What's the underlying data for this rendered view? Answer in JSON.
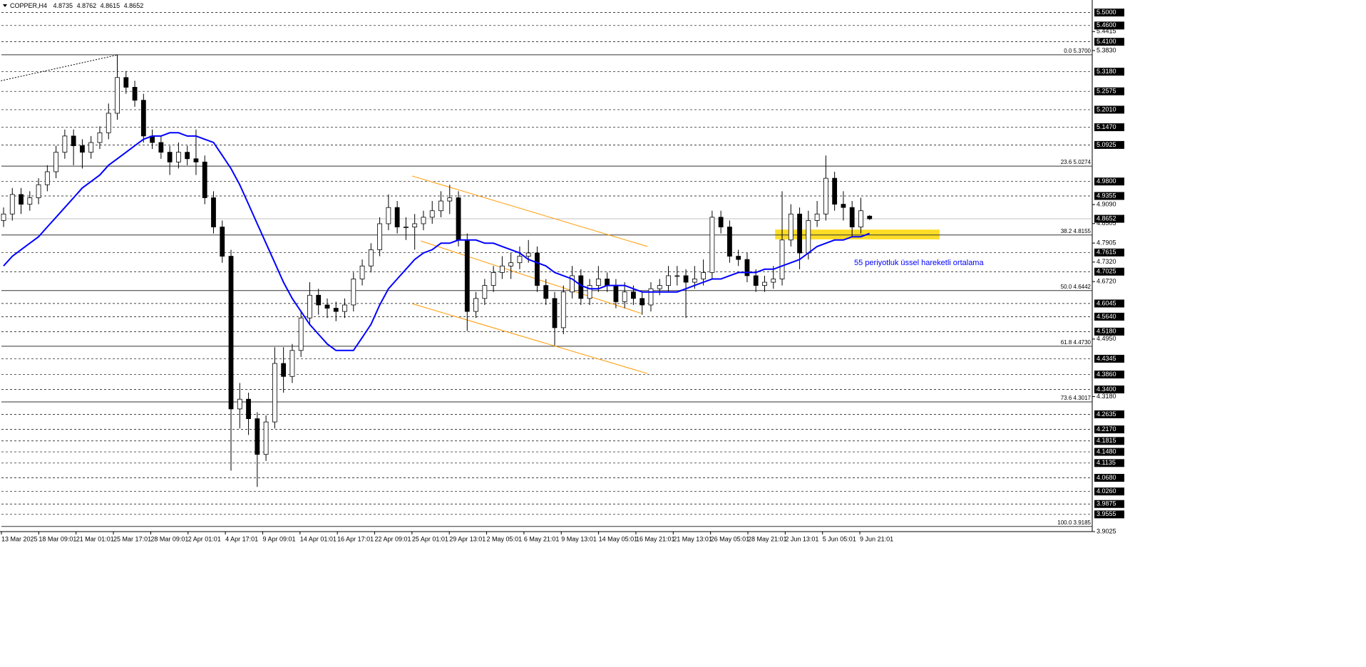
{
  "chart_data": {
    "type": "candlestick",
    "title": "COPPER,H4",
    "x_labels": [
      "13 Mar 2025",
      "18 Mar 09:01",
      "21 Mar 01:01",
      "25 Mar 17:01",
      "28 Mar 09:01",
      "2 Apr 01:01",
      "4 Apr 17:01",
      "9 Apr 09:01",
      "14 Apr 01:01",
      "16 Apr 17:01",
      "22 Apr 09:01",
      "25 Apr 01:01",
      "29 Apr 13:01",
      "2 May 05:01",
      "6 May 21:01",
      "9 May 13:01",
      "14 May 05:01",
      "16 May 21:01",
      "21 May 13:01",
      "26 May 05:01",
      "28 May 21:01",
      "2 Jun 13:01",
      "5 Jun 05:01",
      "9 Jun 21:01"
    ],
    "candles": [
      [
        4.86,
        4.9,
        4.84,
        4.88
      ],
      [
        4.88,
        4.96,
        4.86,
        4.94
      ],
      [
        4.94,
        4.96,
        4.88,
        4.91
      ],
      [
        4.91,
        4.95,
        4.89,
        4.93
      ],
      [
        4.93,
        4.99,
        4.91,
        4.97
      ],
      [
        4.97,
        5.03,
        4.95,
        5.01
      ],
      [
        5.01,
        5.09,
        4.99,
        5.07
      ],
      [
        5.07,
        5.14,
        5.05,
        5.12
      ],
      [
        5.12,
        5.14,
        5.03,
        5.09
      ],
      [
        5.09,
        5.11,
        5.02,
        5.07
      ],
      [
        5.07,
        5.12,
        5.05,
        5.1
      ],
      [
        5.1,
        5.15,
        5.08,
        5.13
      ],
      [
        5.13,
        5.22,
        5.11,
        5.19
      ],
      [
        5.19,
        5.37,
        5.17,
        5.3
      ],
      [
        5.3,
        5.32,
        5.25,
        5.27
      ],
      [
        5.27,
        5.29,
        5.21,
        5.23
      ],
      [
        5.23,
        5.25,
        5.1,
        5.12
      ],
      [
        5.12,
        5.14,
        5.08,
        5.1
      ],
      [
        5.1,
        5.12,
        5.05,
        5.07
      ],
      [
        5.07,
        5.09,
        5.0,
        5.04
      ],
      [
        5.04,
        5.1,
        5.02,
        5.07
      ],
      [
        5.07,
        5.09,
        5.03,
        5.05
      ],
      [
        5.05,
        5.14,
        5.0,
        5.04
      ],
      [
        5.04,
        5.06,
        4.91,
        4.93
      ],
      [
        4.93,
        4.95,
        4.82,
        4.84
      ],
      [
        4.84,
        4.86,
        4.73,
        4.75
      ],
      [
        4.75,
        4.77,
        4.09,
        4.28
      ],
      [
        4.28,
        4.36,
        4.22,
        4.31
      ],
      [
        4.31,
        4.33,
        4.2,
        4.25
      ],
      [
        4.25,
        4.27,
        4.04,
        4.14
      ],
      [
        4.14,
        4.26,
        4.12,
        4.24
      ],
      [
        4.24,
        4.47,
        4.22,
        4.42
      ],
      [
        4.42,
        4.47,
        4.33,
        4.38
      ],
      [
        4.38,
        4.48,
        4.36,
        4.46
      ],
      [
        4.46,
        4.58,
        4.44,
        4.56
      ],
      [
        4.56,
        4.67,
        4.54,
        4.63
      ],
      [
        4.63,
        4.65,
        4.57,
        4.6
      ],
      [
        4.6,
        4.62,
        4.56,
        4.59
      ],
      [
        4.59,
        4.61,
        4.55,
        4.58
      ],
      [
        4.58,
        4.62,
        4.56,
        4.6
      ],
      [
        4.6,
        4.7,
        4.58,
        4.68
      ],
      [
        4.68,
        4.74,
        4.66,
        4.72
      ],
      [
        4.72,
        4.79,
        4.7,
        4.77
      ],
      [
        4.77,
        4.87,
        4.75,
        4.85
      ],
      [
        4.85,
        4.94,
        4.83,
        4.9
      ],
      [
        4.9,
        4.92,
        4.82,
        4.84
      ],
      [
        4.84,
        4.87,
        4.8,
        4.84
      ],
      [
        4.84,
        4.88,
        4.77,
        4.85
      ],
      [
        4.85,
        4.89,
        4.83,
        4.87
      ],
      [
        4.87,
        4.92,
        4.85,
        4.89
      ],
      [
        4.89,
        4.95,
        4.87,
        4.92
      ],
      [
        4.92,
        4.97,
        4.88,
        4.93
      ],
      [
        4.93,
        4.95,
        4.78,
        4.8
      ],
      [
        4.8,
        4.82,
        4.52,
        4.58
      ],
      [
        4.58,
        4.64,
        4.56,
        4.62
      ],
      [
        4.62,
        4.68,
        4.6,
        4.66
      ],
      [
        4.66,
        4.72,
        4.64,
        4.7
      ],
      [
        4.7,
        4.75,
        4.68,
        4.72
      ],
      [
        4.72,
        4.76,
        4.68,
        4.73
      ],
      [
        4.73,
        4.78,
        4.71,
        4.75
      ],
      [
        4.75,
        4.8,
        4.73,
        4.76
      ],
      [
        4.76,
        4.78,
        4.64,
        4.66
      ],
      [
        4.66,
        4.68,
        4.6,
        4.62
      ],
      [
        4.62,
        4.64,
        4.475,
        4.53
      ],
      [
        4.53,
        4.66,
        4.51,
        4.64
      ],
      [
        4.64,
        4.72,
        4.62,
        4.69
      ],
      [
        4.69,
        4.71,
        4.6,
        4.62
      ],
      [
        4.62,
        4.68,
        4.6,
        4.66
      ],
      [
        4.66,
        4.72,
        4.64,
        4.68
      ],
      [
        4.68,
        4.7,
        4.64,
        4.66
      ],
      [
        4.66,
        4.68,
        4.59,
        4.61
      ],
      [
        4.61,
        4.67,
        4.59,
        4.64
      ],
      [
        4.64,
        4.66,
        4.6,
        4.62
      ],
      [
        4.62,
        4.64,
        4.57,
        4.6
      ],
      [
        4.6,
        4.67,
        4.58,
        4.65
      ],
      [
        4.65,
        4.68,
        4.63,
        4.66
      ],
      [
        4.66,
        4.72,
        4.64,
        4.69
      ],
      [
        4.69,
        4.72,
        4.66,
        4.69
      ],
      [
        4.69,
        4.71,
        4.56,
        4.67
      ],
      [
        4.67,
        4.72,
        4.65,
        4.68
      ],
      [
        4.68,
        4.74,
        4.66,
        4.7
      ],
      [
        4.7,
        4.89,
        4.68,
        4.87
      ],
      [
        4.87,
        4.89,
        4.82,
        4.84
      ],
      [
        4.84,
        4.86,
        4.73,
        4.75
      ],
      [
        4.75,
        4.77,
        4.72,
        4.74
      ],
      [
        4.74,
        4.76,
        4.67,
        4.69
      ],
      [
        4.69,
        4.71,
        4.64,
        4.66
      ],
      [
        4.66,
        4.69,
        4.64,
        4.67
      ],
      [
        4.67,
        4.72,
        4.65,
        4.68
      ],
      [
        4.68,
        4.95,
        4.66,
        4.8
      ],
      [
        4.8,
        4.91,
        4.78,
        4.88
      ],
      [
        4.88,
        4.9,
        4.71,
        4.76
      ],
      [
        4.76,
        4.89,
        4.74,
        4.86
      ],
      [
        4.86,
        4.92,
        4.84,
        4.88
      ],
      [
        4.88,
        5.06,
        4.86,
        4.99
      ],
      [
        4.99,
        5.01,
        4.89,
        4.91
      ],
      [
        4.91,
        4.95,
        4.86,
        4.9
      ],
      [
        4.9,
        4.92,
        4.81,
        4.84
      ],
      [
        4.84,
        4.93,
        4.82,
        4.89
      ],
      [
        4.8735,
        4.8762,
        4.8615,
        4.8652
      ]
    ],
    "ema": {
      "color": "#0000ff",
      "values": [
        4.72,
        4.75,
        4.77,
        4.79,
        4.81,
        4.84,
        4.87,
        4.9,
        4.93,
        4.96,
        4.98,
        5.0,
        5.03,
        5.05,
        5.07,
        5.09,
        5.11,
        5.12,
        5.12,
        5.13,
        5.13,
        5.12,
        5.12,
        5.11,
        5.1,
        5.06,
        5.02,
        4.97,
        4.91,
        4.85,
        4.79,
        4.73,
        4.67,
        4.62,
        4.58,
        4.54,
        4.51,
        4.48,
        4.46,
        4.46,
        4.46,
        4.5,
        4.54,
        4.6,
        4.65,
        4.68,
        4.71,
        4.74,
        4.76,
        4.77,
        4.79,
        4.79,
        4.8,
        4.8,
        4.8,
        4.79,
        4.79,
        4.78,
        4.77,
        4.76,
        4.74,
        4.73,
        4.72,
        4.7,
        4.69,
        4.68,
        4.66,
        4.65,
        4.65,
        4.66,
        4.66,
        4.66,
        4.65,
        4.64,
        4.64,
        4.64,
        4.64,
        4.64,
        4.65,
        4.66,
        4.67,
        4.68,
        4.68,
        4.69,
        4.7,
        4.7,
        4.7,
        4.71,
        4.71,
        4.72,
        4.73,
        4.74,
        4.76,
        4.78,
        4.79,
        4.8,
        4.8,
        4.81,
        4.81,
        4.82
      ]
    },
    "ylim": [
      3.9025,
      5.532
    ],
    "yticks": [
      5.4415,
      {
        "value": 5.383,
        "label": "5.3830"
      },
      {
        "value": 4.909,
        "label": "4.9090"
      },
      4.8505,
      4.7905,
      {
        "value": 4.732,
        "label": "4.7320"
      },
      {
        "value": 4.672,
        "label": "4.6720"
      },
      {
        "value": 4.495,
        "label": "4.4950"
      },
      {
        "value": 4.318,
        "label": "4.3180"
      },
      3.9025
    ],
    "levels": [
      {
        "value": 5.5,
        "label": "5.5000"
      },
      {
        "value": 5.46,
        "label": "5.4600"
      },
      {
        "value": 5.41,
        "label": "5.4100"
      },
      {
        "value": 5.318,
        "label": "5.3180"
      },
      5.2575,
      {
        "value": 5.201,
        "label": "5.2010"
      },
      {
        "value": 5.147,
        "label": "5.1470"
      },
      5.0925,
      {
        "value": 4.98,
        "label": "4.9800"
      },
      4.9355,
      4.7615,
      4.7025,
      4.6045,
      {
        "value": 4.564,
        "label": "4.5640"
      },
      {
        "value": 4.518,
        "label": "4.5180"
      },
      4.4345,
      {
        "value": 4.386,
        "label": "4.3860"
      },
      {
        "value": 4.34,
        "label": "4.3400"
      },
      4.2635,
      {
        "value": 4.217,
        "label": "4.2170"
      },
      4.1815,
      {
        "value": 4.148,
        "label": "4.1480"
      },
      4.1135,
      {
        "value": 4.068,
        "label": "4.0680"
      },
      {
        "value": 4.026,
        "label": "4.0260"
      },
      3.9875,
      3.9555
    ],
    "fibonacci": [
      {
        "value": 5.37,
        "label": "0.0 5.3700"
      },
      {
        "value": 5.0274,
        "label": "23.6 5.0274"
      },
      {
        "value": 4.8155,
        "label": "38.2 4.8155"
      },
      {
        "value": 4.6442,
        "label": "50.0 4.6442"
      },
      {
        "value": 4.473,
        "label": "61.8 4.4730"
      },
      {
        "value": 4.3017,
        "label": "73.6 4.3017"
      },
      {
        "value": 3.9185,
        "label": "100.0 3.9185"
      }
    ],
    "trendlines": [
      {
        "color": "#000000",
        "points": [
          [
            -0.3,
            5.29
          ],
          [
            13.1,
            5.37
          ]
        ]
      },
      {
        "color": "#ff9900",
        "points": [
          [
            46.7,
            4.997
          ],
          [
            73.6,
            4.78
          ]
        ]
      },
      {
        "color": "#ff9900",
        "points": [
          [
            47.7,
            4.797
          ],
          [
            72.9,
            4.574
          ]
        ]
      },
      {
        "color": "#ff9900",
        "points": [
          [
            46.7,
            4.604
          ],
          [
            73.6,
            4.389
          ]
        ]
      }
    ],
    "zone": {
      "color": "#ffd700",
      "x": [
        88.2,
        107
      ],
      "y": [
        4.802,
        4.832
      ]
    },
    "annotation": "55 periyotluk üssel hareketli ortalama"
  }
}
